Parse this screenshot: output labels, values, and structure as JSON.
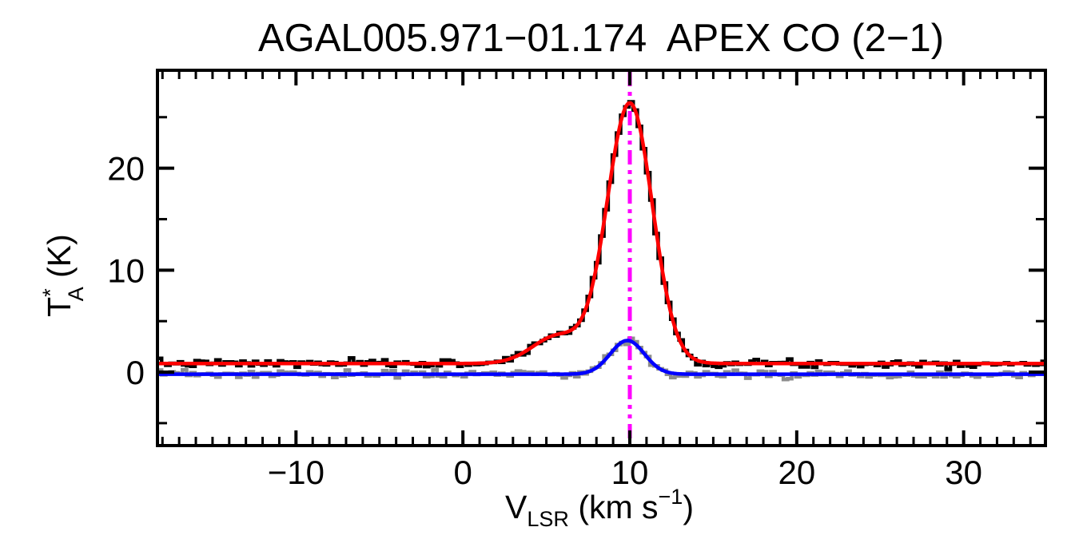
{
  "chart_data": {
    "type": "line",
    "title": "AGAL005.971−01.174  APEX CO (2−1)",
    "xlabel": {
      "text": "V_LSR (km s−1)",
      "parts": {
        "base": "V",
        "sub": "LSR",
        "mid": " (km s",
        "sup": "−1",
        "close": ")"
      }
    },
    "ylabel": {
      "text": "T_A* (K)",
      "parts": {
        "base": "T",
        "sup": "*",
        "sub": "A",
        "post": " (K)"
      }
    },
    "xlim": [
      -18.3,
      34.9
    ],
    "ylim": [
      -7.2,
      29.6
    ],
    "x_major_ticks": [
      -10,
      0,
      10,
      20,
      30
    ],
    "x_major_tick_labels": [
      "−10",
      "0",
      "10",
      "20",
      "30"
    ],
    "x_minor_step": 1,
    "y_major_ticks": [
      0,
      10,
      20
    ],
    "y_major_tick_labels": [
      "0",
      "10",
      "20"
    ],
    "y_minor_step": 5,
    "channel_width_kms": 0.25,
    "axis_color": "#000000",
    "background": "#ffffff",
    "vline": {
      "x": 10.0,
      "color": "#ff00ff",
      "style": "dash-dot-dot",
      "name": "systemic-velocity-marker"
    },
    "series": [
      {
        "name": "observed-spectrum",
        "style": "histogram",
        "color": "#000000",
        "baseline": 0.85,
        "noise_rms": 0.18,
        "seed": 7,
        "gaussians": [
          {
            "center": 10.0,
            "peak": 25.5,
            "fwhm": 3.2
          },
          {
            "center": 5.7,
            "peak": 2.7,
            "fwhm": 3.6
          }
        ]
      },
      {
        "name": "comparison-spectrum",
        "style": "histogram",
        "color": "#8c8c8c",
        "baseline": -0.2,
        "noise_rms": 0.2,
        "seed": 23,
        "gaussians": [
          {
            "center": 9.85,
            "peak": 3.3,
            "fwhm": 2.4
          }
        ]
      },
      {
        "name": "observed-fit",
        "style": "smooth",
        "color": "#ff0000",
        "baseline": 0.85,
        "noise_rms": 0,
        "gaussians": [
          {
            "center": 10.0,
            "peak": 25.5,
            "fwhm": 3.2
          },
          {
            "center": 5.7,
            "peak": 2.7,
            "fwhm": 3.6
          }
        ]
      },
      {
        "name": "comparison-fit",
        "style": "smooth",
        "color": "#0000ff",
        "baseline": -0.2,
        "noise_rms": 0,
        "gaussians": [
          {
            "center": 9.85,
            "peak": 3.3,
            "fwhm": 2.4
          }
        ]
      }
    ]
  }
}
